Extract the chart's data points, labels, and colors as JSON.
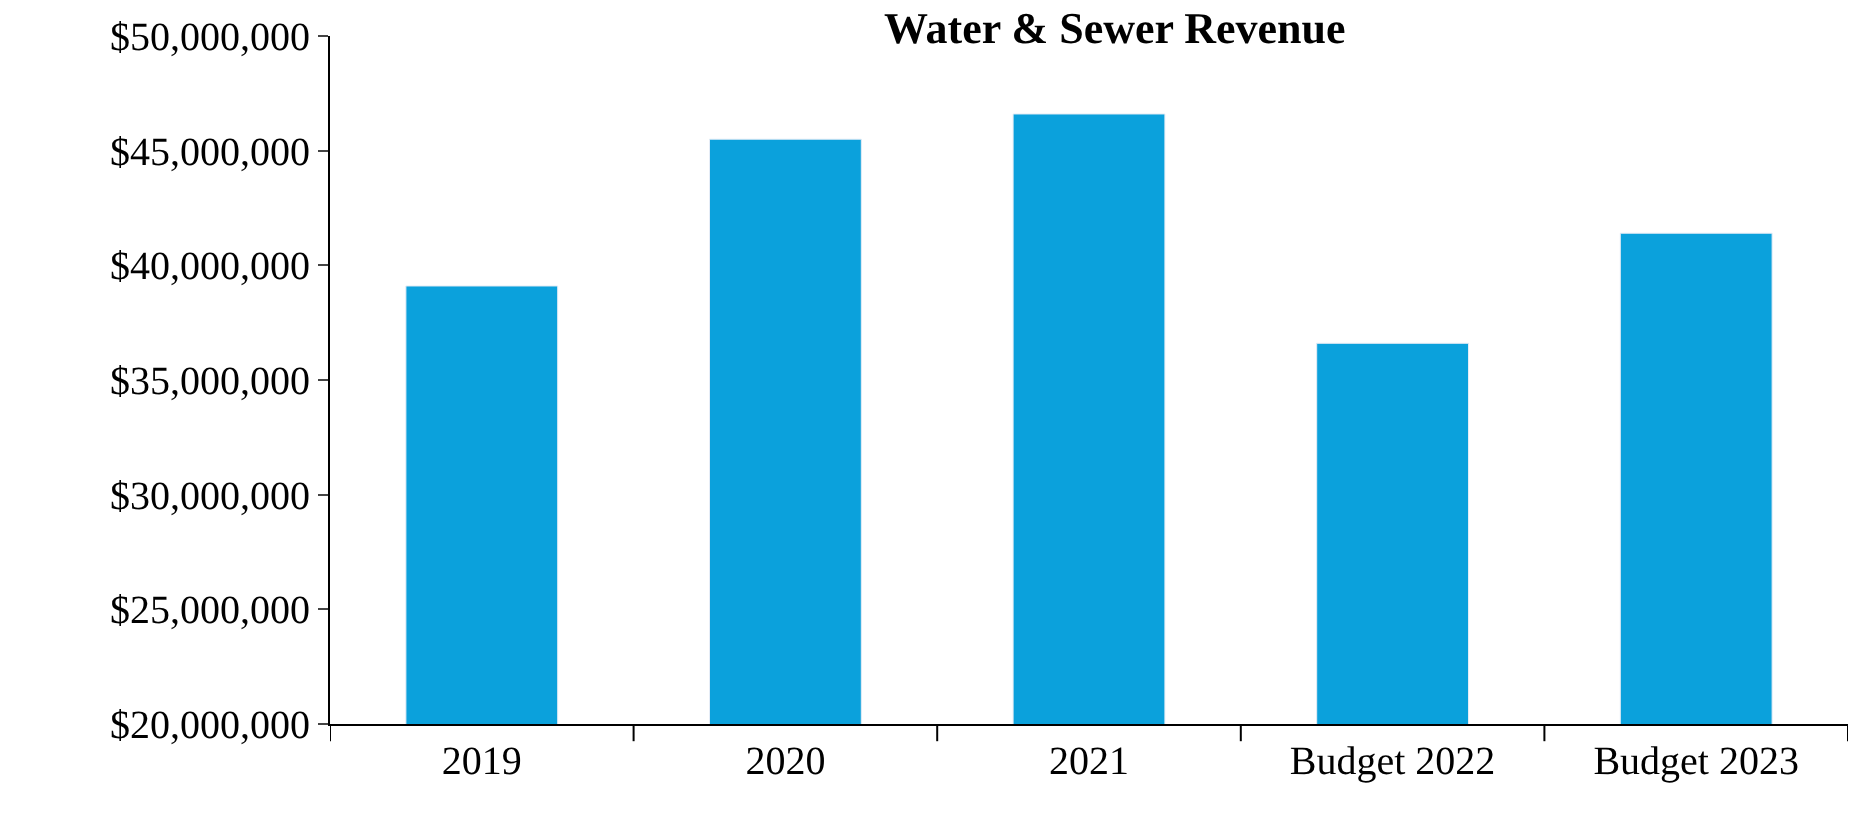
{
  "chart_data": {
    "type": "bar",
    "title": "Water & Sewer Revenue",
    "categories": [
      "2019",
      "2020",
      "2021",
      "Budget 2022",
      "Budget 2023"
    ],
    "values": [
      39100000,
      45500000,
      46600000,
      36600000,
      41400000
    ],
    "color": "#0ba1dc",
    "ylim": [
      20000000,
      50000000
    ],
    "yticks": [
      {
        "value": 20000000,
        "label": "$20,000,000"
      },
      {
        "value": 25000000,
        "label": "$25,000,000"
      },
      {
        "value": 30000000,
        "label": "$30,000,000"
      },
      {
        "value": 35000000,
        "label": "$35,000,000"
      },
      {
        "value": 40000000,
        "label": "$40,000,000"
      },
      {
        "value": 45000000,
        "label": "$45,000,000"
      },
      {
        "value": 50000000,
        "label": "$50,000,000"
      }
    ],
    "tick_labels": [
      "x",
      "y"
    ]
  }
}
